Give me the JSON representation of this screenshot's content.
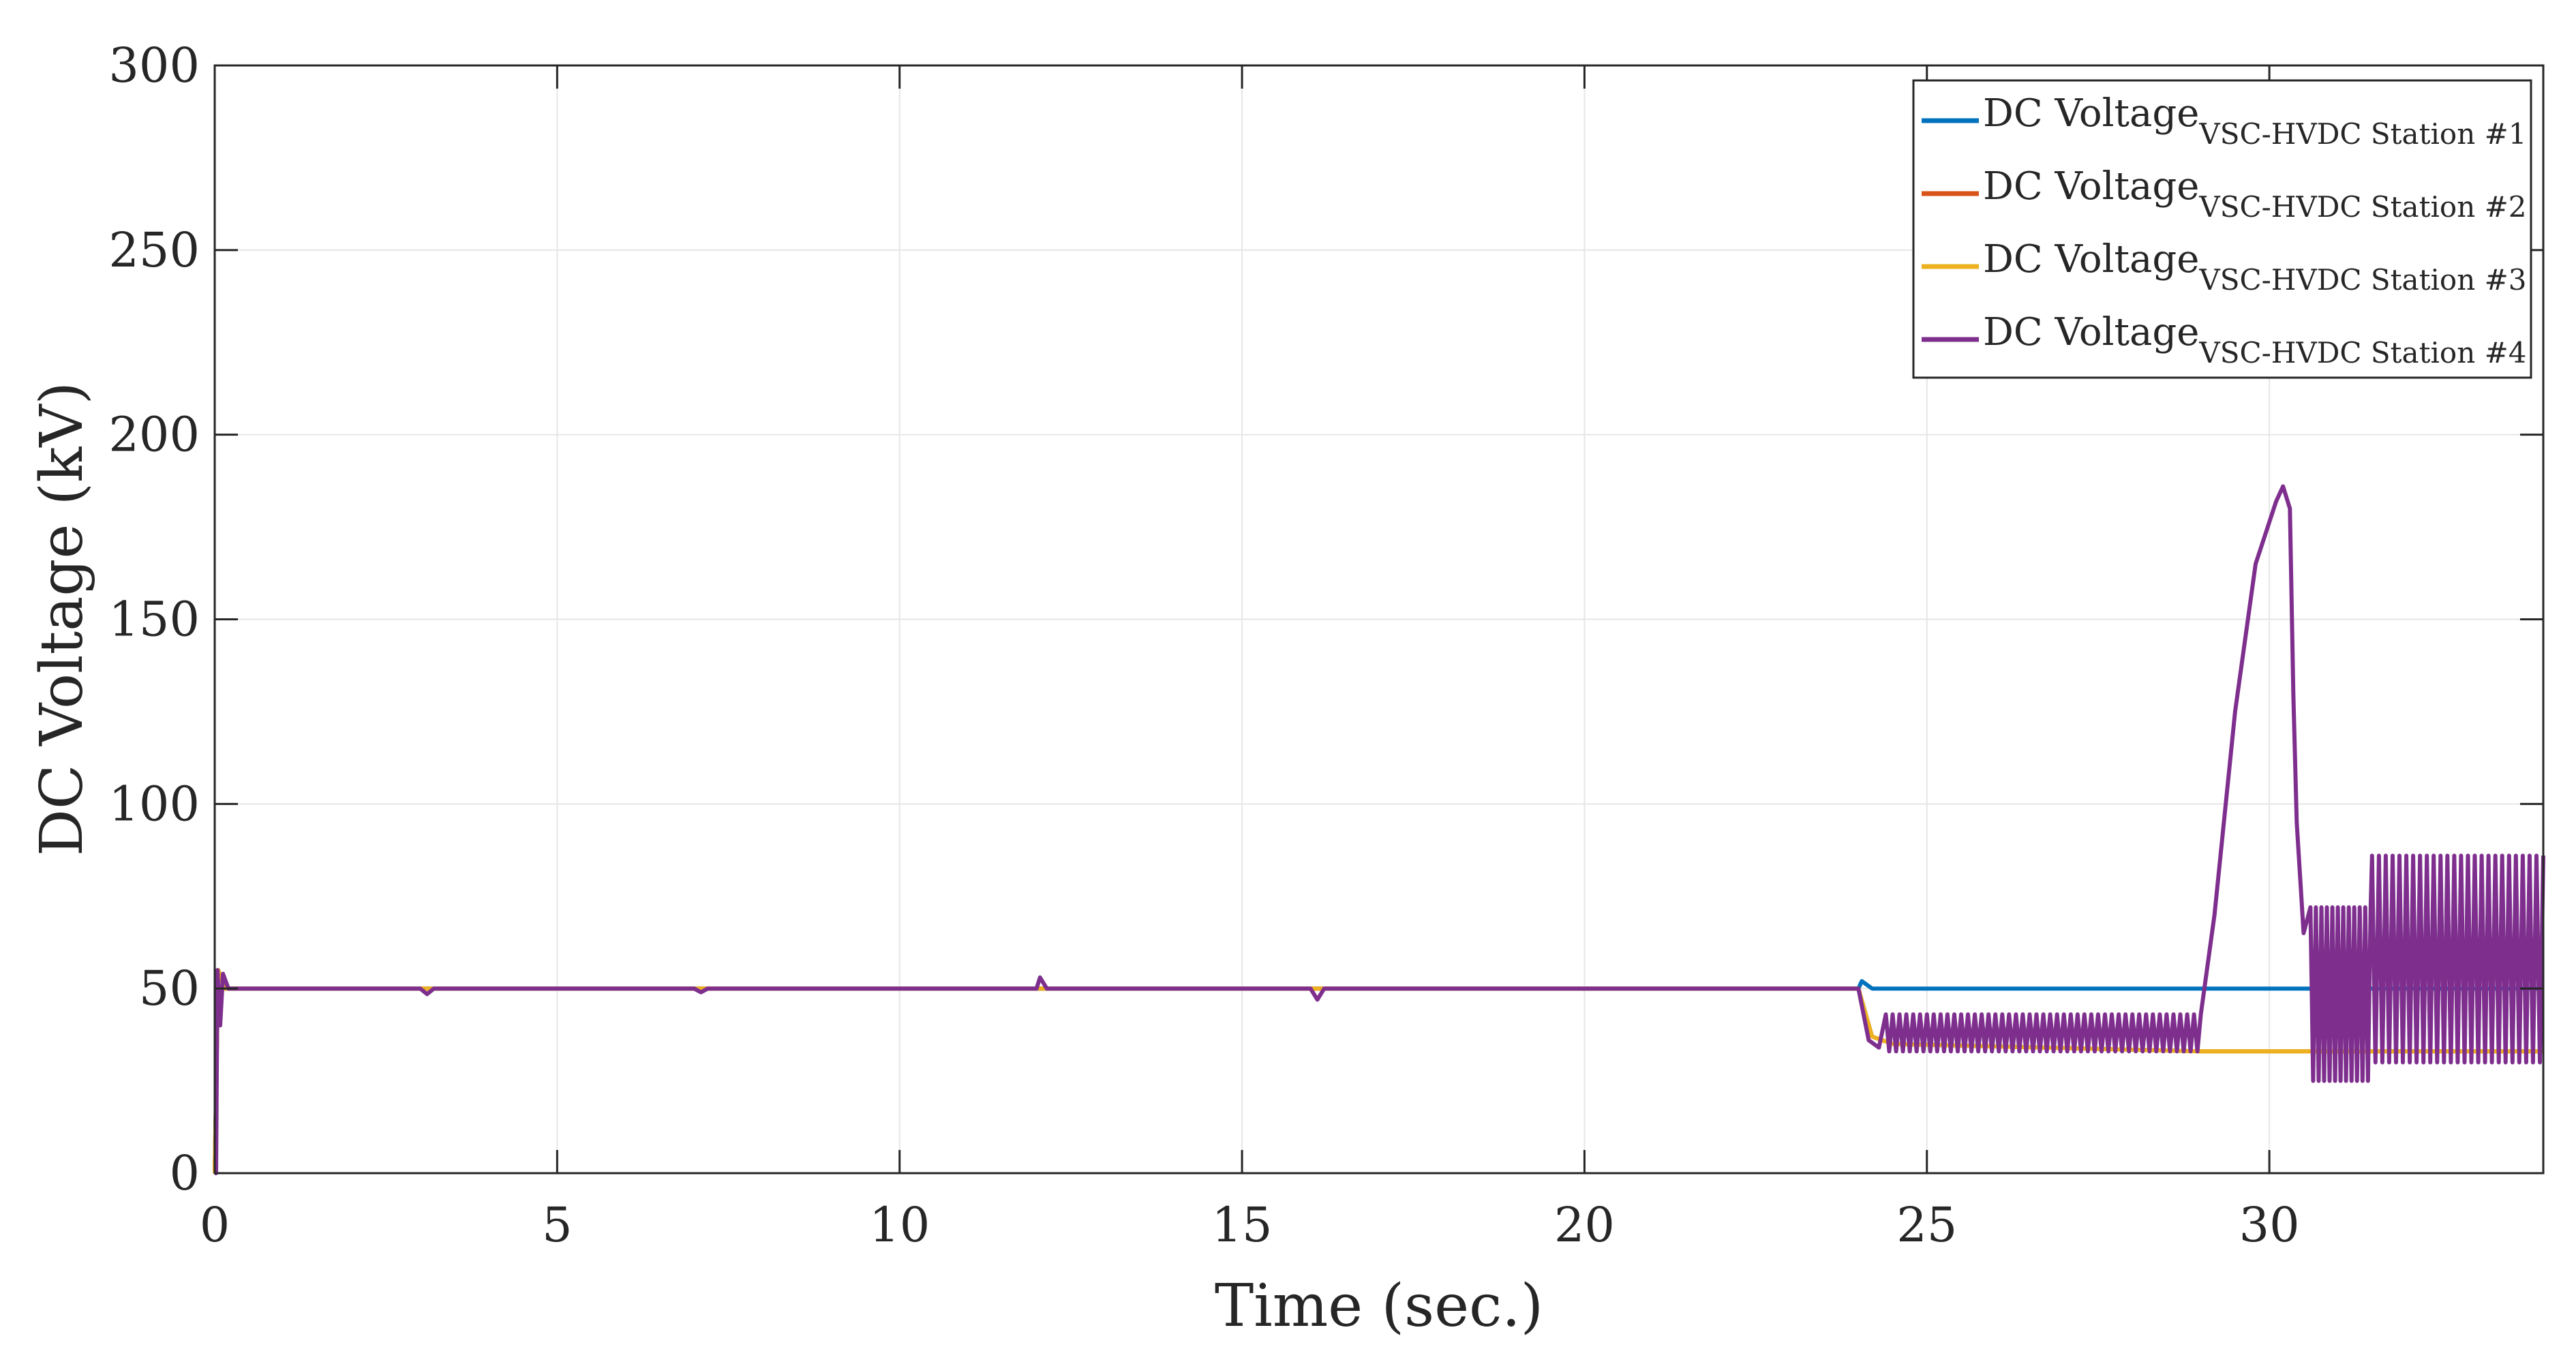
{
  "chart_data": {
    "type": "line",
    "xlabel": "Time (sec.)",
    "ylabel": "DC Voltage (kV)",
    "xlim": [
      0,
      34
    ],
    "ylim": [
      0,
      300
    ],
    "xticks": [
      0,
      5,
      10,
      15,
      20,
      25,
      30
    ],
    "yticks": [
      0,
      50,
      100,
      150,
      200,
      250,
      300
    ],
    "grid": true,
    "legend_position": "top-right",
    "legend_main": "DC Voltage",
    "series": [
      {
        "name": "VSC-HVDC Station #1",
        "color": "#0072BD",
        "points": [
          [
            0,
            0
          ],
          [
            0.05,
            55
          ],
          [
            0.15,
            50
          ],
          [
            24.0,
            50
          ],
          [
            24.05,
            52
          ],
          [
            24.2,
            50
          ],
          [
            34,
            50
          ]
        ]
      },
      {
        "name": "VSC-HVDC Station #2",
        "color": "#D95319",
        "points": [
          [
            0,
            0
          ],
          [
            0.05,
            55
          ],
          [
            0.15,
            50
          ],
          [
            24.0,
            50
          ],
          [
            24.2,
            37
          ],
          [
            24.5,
            35
          ],
          [
            29.0,
            33
          ],
          [
            34,
            33
          ]
        ]
      },
      {
        "name": "VSC-HVDC Station #3",
        "color": "#EDB120",
        "points": [
          [
            0,
            0
          ],
          [
            0.05,
            55
          ],
          [
            0.15,
            50
          ],
          [
            24.0,
            50
          ],
          [
            24.2,
            37
          ],
          [
            24.5,
            35
          ],
          [
            29.0,
            33
          ],
          [
            34,
            33
          ]
        ]
      },
      {
        "name": "VSC-HVDC Station #4",
        "color": "#7E2F8E",
        "points": [
          [
            0,
            0
          ],
          [
            0.02,
            0
          ],
          [
            0.04,
            55
          ],
          [
            0.08,
            40
          ],
          [
            0.12,
            54
          ],
          [
            0.2,
            50
          ],
          [
            3.0,
            50
          ],
          [
            3.1,
            48.5
          ],
          [
            3.2,
            50
          ],
          [
            7.0,
            50
          ],
          [
            7.1,
            49
          ],
          [
            7.2,
            50
          ],
          [
            12.0,
            50
          ],
          [
            12.05,
            53
          ],
          [
            12.15,
            50
          ],
          [
            16.0,
            50
          ],
          [
            16.1,
            47
          ],
          [
            16.2,
            50
          ],
          [
            24.0,
            50
          ],
          [
            24.15,
            36
          ],
          [
            24.3,
            34
          ],
          [
            29.0,
            36
          ],
          [
            29.2,
            70
          ],
          [
            29.5,
            125
          ],
          [
            29.8,
            165
          ],
          [
            30.1,
            182
          ],
          [
            30.2,
            186
          ],
          [
            30.3,
            180
          ],
          [
            30.35,
            130
          ],
          [
            30.4,
            95
          ],
          [
            30.5,
            65
          ],
          [
            30.6,
            30
          ],
          [
            30.8,
            55
          ],
          [
            31.5,
            80
          ],
          [
            32.0,
            84
          ],
          [
            34,
            85
          ]
        ],
        "oscillations": [
          {
            "start": 24.4,
            "end": 29.0,
            "low": 33,
            "high": 43,
            "period": 0.1
          },
          {
            "start": 30.6,
            "end": 31.5,
            "low": 25,
            "high": 72,
            "period": 0.08
          },
          {
            "start": 31.5,
            "end": 34.0,
            "low": 30,
            "high": 86,
            "period": 0.1
          }
        ]
      }
    ]
  }
}
